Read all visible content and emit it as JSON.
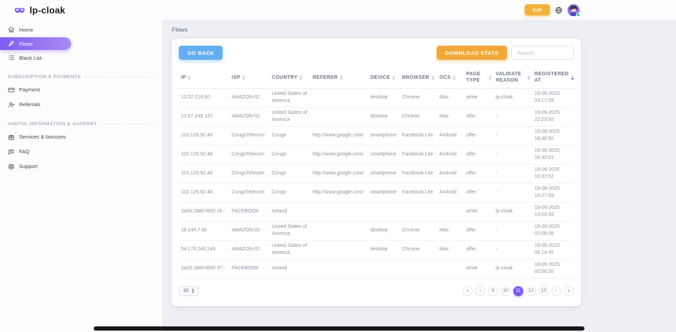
{
  "brand": {
    "name": "lp-cloak"
  },
  "topbar": {
    "vip_label": "VIP"
  },
  "sidebar": {
    "main_items": [
      {
        "label": "Home",
        "icon": "home",
        "active": false
      },
      {
        "label": "Flows",
        "icon": "flows",
        "active": true
      },
      {
        "label": "Black List",
        "icon": "black-list",
        "active": false
      }
    ],
    "sections": [
      {
        "title": "SUBSCRIPTION & PAYMENTS",
        "items": [
          {
            "label": "Payment",
            "icon": "payment"
          },
          {
            "label": "Referrals",
            "icon": "referrals"
          }
        ]
      },
      {
        "title": "USEFUL INFORMATION & SUPPORT",
        "items": [
          {
            "label": "Services & bonuses",
            "icon": "services"
          },
          {
            "label": "FAQ",
            "icon": "faq"
          },
          {
            "label": "Support",
            "icon": "support"
          }
        ]
      }
    ]
  },
  "page": {
    "title": "Flows"
  },
  "toolbar": {
    "go_back_label": "GO BACK",
    "download_stats_label": "DOWNLOAD STATS",
    "search_placeholder": "Search..."
  },
  "table": {
    "columns": [
      {
        "key": "ip",
        "label": "IP"
      },
      {
        "key": "isp",
        "label": "ISP"
      },
      {
        "key": "country",
        "label": "COUNTRY"
      },
      {
        "key": "referer",
        "label": "REFERER"
      },
      {
        "key": "device",
        "label": "DEVICE"
      },
      {
        "key": "browser",
        "label": "BROWSER"
      },
      {
        "key": "ocs",
        "label": "OCS"
      },
      {
        "key": "page_type",
        "label": "PAGE TYPE"
      },
      {
        "key": "validate_reason",
        "label": "VALIDATE REASON"
      },
      {
        "key": "registered_at",
        "label": "REGISTERED AT",
        "sort_active": true
      }
    ],
    "rows": [
      {
        "ip": "13.52.218.60",
        "isp": "AMAZON-02",
        "country": "United States of America",
        "referer": "",
        "device": "desktop",
        "browser": "Chrome",
        "ocs": "Mac",
        "page_type": "white",
        "validate_reason": "lp-cloak",
        "registered_at": "19-09-2025 23:17:29"
      },
      {
        "ip": "13.57.249.137",
        "isp": "AMAZON-02",
        "country": "United States of America",
        "referer": "",
        "device": "desktop",
        "browser": "Chrome",
        "ocs": "Mac",
        "page_type": "offer",
        "validate_reason": "-",
        "registered_at": "19-09-2025 22:23:50"
      },
      {
        "ip": "102.129.92.48",
        "isp": "CongoTelecom",
        "country": "Congo",
        "referer": "http://www.google.com/",
        "device": "smartphone",
        "browser": "Facebook Lite",
        "ocs": "Android",
        "page_type": "offer",
        "validate_reason": "-",
        "registered_at": "19-09-2025 16:40:50"
      },
      {
        "ip": "102.129.92.48",
        "isp": "CongoTelecom",
        "country": "Congo",
        "referer": "http://www.google.com/",
        "device": "smartphone",
        "browser": "Facebook Lite",
        "ocs": "Android",
        "page_type": "offer",
        "validate_reason": "-",
        "registered_at": "19-09-2025 16:40:01"
      },
      {
        "ip": "102.129.92.48",
        "isp": "CongoTelecom",
        "country": "Congo",
        "referer": "http://www.google.com/",
        "device": "smartphone",
        "browser": "Facebook Lite",
        "ocs": "Android",
        "page_type": "offer",
        "validate_reason": "-",
        "registered_at": "19-09-2025 16:37:52"
      },
      {
        "ip": "102.129.92.48",
        "isp": "CongoTelecom",
        "country": "Congo",
        "referer": "http://www.google.com/",
        "device": "smartphone",
        "browser": "Facebook Lite",
        "ocs": "Android",
        "page_type": "offer",
        "validate_reason": "-",
        "registered_at": "19-09-2025 16:27:59"
      },
      {
        "ip": "2a03:2880:f800:1b::",
        "isp": "FACEBOOK",
        "country": "Ireland",
        "referer": "",
        "device": "",
        "browser": "",
        "ocs": "",
        "page_type": "white",
        "validate_reason": "lp-cloak",
        "registered_at": "19-09-2025 13:03:09"
      },
      {
        "ip": "18.144.7.80",
        "isp": "AMAZON-02",
        "country": "United States of America",
        "referer": "",
        "device": "desktop",
        "browser": "Chrome",
        "ocs": "Mac",
        "page_type": "offer",
        "validate_reason": "-",
        "registered_at": "19-09-2025 07:09:26"
      },
      {
        "ip": "54.176.249.249",
        "isp": "AMAZON-02",
        "country": "United States of America",
        "referer": "",
        "device": "desktop",
        "browser": "Chrome",
        "ocs": "Mac",
        "page_type": "offer",
        "validate_reason": "-",
        "registered_at": "19-09-2025 06:14:35"
      },
      {
        "ip": "2a03:2880:f800:37::",
        "isp": "FACEBOOK",
        "country": "Ireland",
        "referer": "",
        "device": "",
        "browser": "",
        "ocs": "",
        "page_type": "white",
        "validate_reason": "lp-cloak",
        "registered_at": "19-09-2025 00:58:35"
      }
    ]
  },
  "footer": {
    "rows_per_page": "10",
    "pagination": {
      "items": [
        {
          "label": "«",
          "type": "first",
          "active": false
        },
        {
          "label": "‹",
          "type": "prev",
          "active": false
        },
        {
          "label": "9",
          "type": "page",
          "active": false
        },
        {
          "label": "10",
          "type": "page",
          "active": false
        },
        {
          "label": "11",
          "type": "page",
          "active": true
        },
        {
          "label": "12",
          "type": "page",
          "active": false
        },
        {
          "label": "13",
          "type": "page",
          "active": false
        },
        {
          "label": "›",
          "type": "next",
          "active": false
        },
        {
          "label": "»",
          "type": "last",
          "active": false
        }
      ]
    }
  },
  "colors": {
    "accent_purple": "#7e5bef",
    "pagination_active": "#7b57f5",
    "button_blue": "#63aef1",
    "button_orange": "#f2a838",
    "vip_yellow": "#f4b13a",
    "online_green": "#3ecf6a",
    "background": "#edeff4"
  }
}
